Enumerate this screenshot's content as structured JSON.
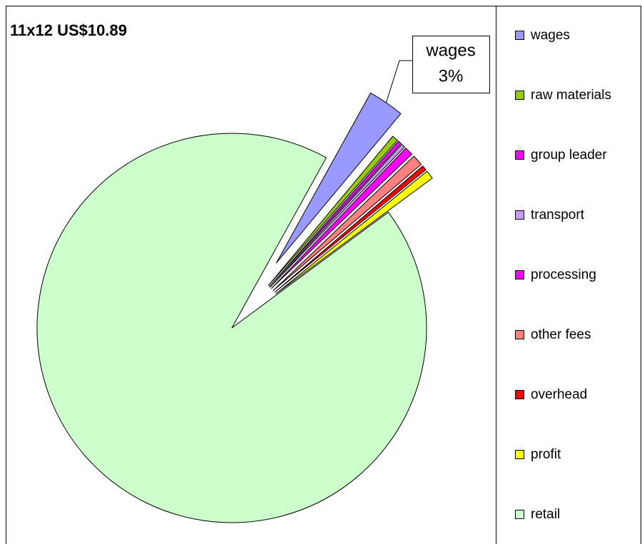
{
  "chart_data": {
    "type": "pie",
    "title": "11x12 US$10.89",
    "categories": [
      "wages",
      "raw materials",
      "group leader",
      "transport",
      "processing",
      "other fees",
      "overhead",
      "profit",
      "retail"
    ],
    "values": [
      3,
      0.5,
      0.3,
      0.3,
      0.7,
      0.9,
      0.4,
      0.7,
      93.2
    ],
    "value_labels": [
      "3%",
      null,
      null,
      null,
      null,
      null,
      null,
      null,
      null
    ],
    "colors": [
      "#9999ff",
      "#99cc00",
      "#ff00ff",
      "#cc99ff",
      "#ff00ff",
      "#ff8080",
      "#ff0000",
      "#ffff00",
      "#ccffcc"
    ],
    "legend": "right"
  }
}
